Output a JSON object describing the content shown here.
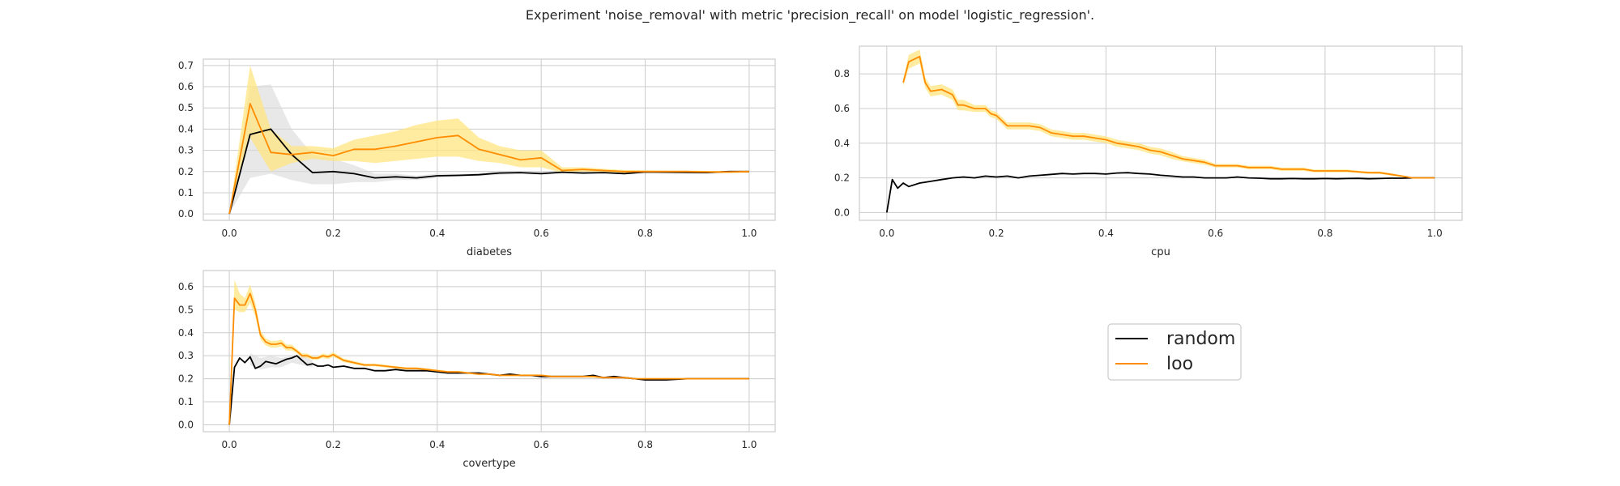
{
  "figure": {
    "title": "Experiment 'noise_removal' with metric 'precision_recall' on model 'logistic_regression'.",
    "legend": {
      "placement": "center",
      "entries": [
        {
          "label": "random",
          "color": "#000000"
        },
        {
          "label": "loo",
          "color": "#ff8c00"
        }
      ]
    },
    "colors": {
      "random": "#000000",
      "random_band": "#d9d9d9",
      "loo": "#ff8c00",
      "loo_band": "#ffe680",
      "grid": "#cccccc"
    }
  },
  "chart_data": [
    {
      "type": "line",
      "xlabel": "diabetes",
      "ylabel": "",
      "xlim": [
        -0.05,
        1.05
      ],
      "ylim": [
        -0.03,
        0.73
      ],
      "xticks": [
        "0.0",
        "0.2",
        "0.4",
        "0.6",
        "0.8",
        "1.0"
      ],
      "yticks": [
        "0.0",
        "0.1",
        "0.2",
        "0.3",
        "0.4",
        "0.5",
        "0.6",
        "0.7"
      ],
      "grid": true,
      "series": [
        {
          "name": "random",
          "x": [
            0.0,
            0.04,
            0.08,
            0.12,
            0.16,
            0.2,
            0.24,
            0.28,
            0.32,
            0.36,
            0.4,
            0.44,
            0.48,
            0.52,
            0.56,
            0.6,
            0.64,
            0.68,
            0.72,
            0.76,
            0.8,
            0.84,
            0.88,
            0.92,
            0.96,
            1.0
          ],
          "y": [
            0.0,
            0.375,
            0.4,
            0.28,
            0.195,
            0.2,
            0.19,
            0.17,
            0.175,
            0.17,
            0.18,
            0.182,
            0.185,
            0.193,
            0.195,
            0.19,
            0.197,
            0.193,
            0.195,
            0.19,
            0.198,
            0.197,
            0.196,
            0.195,
            0.2,
            0.2
          ],
          "lower": [
            0.0,
            0.17,
            0.19,
            0.16,
            0.14,
            0.14,
            0.15,
            0.15,
            0.16,
            0.16,
            0.17,
            0.175,
            0.178,
            0.185,
            0.188,
            0.185,
            0.19,
            0.188,
            0.19,
            0.186,
            0.193,
            0.193,
            0.192,
            0.191,
            0.196,
            0.196
          ],
          "upper": [
            0.0,
            0.6,
            0.61,
            0.4,
            0.28,
            0.26,
            0.23,
            0.19,
            0.19,
            0.18,
            0.19,
            0.19,
            0.192,
            0.2,
            0.202,
            0.196,
            0.204,
            0.198,
            0.2,
            0.195,
            0.203,
            0.201,
            0.2,
            0.199,
            0.204,
            0.204
          ]
        },
        {
          "name": "loo",
          "x": [
            0.0,
            0.04,
            0.08,
            0.12,
            0.16,
            0.2,
            0.24,
            0.28,
            0.32,
            0.36,
            0.4,
            0.44,
            0.48,
            0.52,
            0.56,
            0.6,
            0.64,
            0.68,
            0.72,
            0.76,
            0.8,
            0.84,
            0.88,
            0.92,
            0.96,
            1.0
          ],
          "y": [
            0.0,
            0.52,
            0.29,
            0.28,
            0.29,
            0.275,
            0.305,
            0.305,
            0.32,
            0.34,
            0.36,
            0.37,
            0.305,
            0.28,
            0.255,
            0.265,
            0.205,
            0.21,
            0.205,
            0.2,
            0.2,
            0.2,
            0.2,
            0.198,
            0.198,
            0.2
          ],
          "lower": [
            0.0,
            0.36,
            0.2,
            0.24,
            0.26,
            0.25,
            0.25,
            0.24,
            0.25,
            0.26,
            0.27,
            0.27,
            0.25,
            0.24,
            0.22,
            0.22,
            0.195,
            0.2,
            0.197,
            0.193,
            0.194,
            0.195,
            0.195,
            0.193,
            0.193,
            0.195
          ],
          "upper": [
            0.0,
            0.7,
            0.4,
            0.32,
            0.32,
            0.31,
            0.35,
            0.37,
            0.39,
            0.42,
            0.44,
            0.45,
            0.36,
            0.32,
            0.3,
            0.3,
            0.22,
            0.22,
            0.213,
            0.207,
            0.206,
            0.205,
            0.205,
            0.203,
            0.203,
            0.205
          ]
        }
      ]
    },
    {
      "type": "line",
      "xlabel": "cpu",
      "ylabel": "",
      "xlim": [
        -0.05,
        1.05
      ],
      "ylim": [
        -0.045,
        0.96
      ],
      "xticks": [
        "0.0",
        "0.2",
        "0.4",
        "0.6",
        "0.8",
        "1.0"
      ],
      "yticks": [
        "0.0",
        "0.2",
        "0.4",
        "0.6",
        "0.8"
      ],
      "grid": true,
      "series": [
        {
          "name": "random",
          "x": [
            0.0,
            0.01,
            0.02,
            0.03,
            0.04,
            0.06,
            0.08,
            0.1,
            0.12,
            0.14,
            0.16,
            0.18,
            0.2,
            0.22,
            0.24,
            0.26,
            0.28,
            0.3,
            0.32,
            0.34,
            0.36,
            0.38,
            0.4,
            0.42,
            0.44,
            0.46,
            0.48,
            0.5,
            0.52,
            0.54,
            0.56,
            0.58,
            0.6,
            0.62,
            0.64,
            0.66,
            0.68,
            0.7,
            0.72,
            0.74,
            0.76,
            0.78,
            0.8,
            0.82,
            0.84,
            0.86,
            0.88,
            0.9,
            0.92,
            0.94,
            0.96,
            0.98,
            1.0
          ],
          "y": [
            0.0,
            0.19,
            0.14,
            0.17,
            0.15,
            0.17,
            0.18,
            0.19,
            0.2,
            0.205,
            0.2,
            0.21,
            0.205,
            0.21,
            0.2,
            0.21,
            0.215,
            0.22,
            0.225,
            0.222,
            0.225,
            0.225,
            0.222,
            0.228,
            0.23,
            0.225,
            0.222,
            0.215,
            0.21,
            0.205,
            0.205,
            0.2,
            0.2,
            0.2,
            0.205,
            0.2,
            0.198,
            0.195,
            0.195,
            0.196,
            0.195,
            0.195,
            0.196,
            0.195,
            0.196,
            0.197,
            0.195,
            0.196,
            0.198,
            0.198,
            0.2,
            0.2,
            0.2
          ]
        },
        {
          "name": "loo",
          "x": [
            0.03,
            0.04,
            0.06,
            0.07,
            0.08,
            0.1,
            0.12,
            0.13,
            0.14,
            0.16,
            0.18,
            0.19,
            0.2,
            0.22,
            0.24,
            0.26,
            0.28,
            0.3,
            0.32,
            0.34,
            0.36,
            0.38,
            0.4,
            0.42,
            0.44,
            0.46,
            0.48,
            0.5,
            0.52,
            0.54,
            0.56,
            0.58,
            0.6,
            0.62,
            0.64,
            0.66,
            0.68,
            0.7,
            0.72,
            0.74,
            0.76,
            0.78,
            0.8,
            0.82,
            0.84,
            0.86,
            0.88,
            0.9,
            0.92,
            0.94,
            0.96,
            0.98,
            1.0
          ],
          "y": [
            0.75,
            0.87,
            0.9,
            0.75,
            0.7,
            0.71,
            0.68,
            0.62,
            0.62,
            0.6,
            0.6,
            0.57,
            0.56,
            0.5,
            0.5,
            0.5,
            0.49,
            0.46,
            0.45,
            0.44,
            0.44,
            0.43,
            0.42,
            0.4,
            0.39,
            0.38,
            0.36,
            0.35,
            0.33,
            0.31,
            0.3,
            0.29,
            0.27,
            0.27,
            0.27,
            0.26,
            0.26,
            0.26,
            0.25,
            0.25,
            0.25,
            0.24,
            0.24,
            0.24,
            0.24,
            0.235,
            0.23,
            0.23,
            0.22,
            0.21,
            0.2,
            0.2,
            0.2
          ],
          "lower": [
            0.73,
            0.83,
            0.86,
            0.72,
            0.67,
            0.68,
            0.65,
            0.59,
            0.59,
            0.58,
            0.58,
            0.55,
            0.54,
            0.48,
            0.48,
            0.48,
            0.47,
            0.44,
            0.43,
            0.42,
            0.42,
            0.41,
            0.4,
            0.38,
            0.37,
            0.36,
            0.34,
            0.33,
            0.31,
            0.295,
            0.285,
            0.275,
            0.26,
            0.26,
            0.26,
            0.25,
            0.25,
            0.25,
            0.24,
            0.24,
            0.24,
            0.232,
            0.232,
            0.232,
            0.232,
            0.228,
            0.223,
            0.223,
            0.213,
            0.205,
            0.196,
            0.196,
            0.196
          ],
          "upper": [
            0.77,
            0.91,
            0.94,
            0.78,
            0.73,
            0.74,
            0.71,
            0.65,
            0.65,
            0.62,
            0.62,
            0.59,
            0.58,
            0.52,
            0.52,
            0.52,
            0.51,
            0.48,
            0.47,
            0.46,
            0.46,
            0.45,
            0.44,
            0.42,
            0.41,
            0.4,
            0.38,
            0.37,
            0.35,
            0.325,
            0.315,
            0.305,
            0.28,
            0.28,
            0.28,
            0.27,
            0.27,
            0.27,
            0.26,
            0.26,
            0.26,
            0.248,
            0.248,
            0.248,
            0.248,
            0.242,
            0.237,
            0.237,
            0.227,
            0.215,
            0.204,
            0.204,
            0.204
          ]
        }
      ]
    },
    {
      "type": "line",
      "xlabel": "covertype",
      "ylabel": "",
      "xlim": [
        -0.05,
        1.05
      ],
      "ylim": [
        -0.03,
        0.67
      ],
      "xticks": [
        "0.0",
        "0.2",
        "0.4",
        "0.6",
        "0.8",
        "1.0"
      ],
      "yticks": [
        "0.0",
        "0.1",
        "0.2",
        "0.3",
        "0.4",
        "0.5",
        "0.6"
      ],
      "grid": true,
      "series": [
        {
          "name": "random",
          "x": [
            0.0,
            0.01,
            0.02,
            0.03,
            0.04,
            0.05,
            0.06,
            0.07,
            0.08,
            0.09,
            0.1,
            0.11,
            0.12,
            0.13,
            0.14,
            0.15,
            0.16,
            0.17,
            0.18,
            0.19,
            0.2,
            0.22,
            0.24,
            0.26,
            0.28,
            0.3,
            0.32,
            0.34,
            0.36,
            0.38,
            0.4,
            0.42,
            0.44,
            0.46,
            0.48,
            0.5,
            0.52,
            0.54,
            0.56,
            0.58,
            0.6,
            0.62,
            0.64,
            0.66,
            0.68,
            0.7,
            0.72,
            0.74,
            0.76,
            0.78,
            0.8,
            0.84,
            0.88,
            0.92,
            0.96,
            1.0
          ],
          "y": [
            0.0,
            0.25,
            0.29,
            0.27,
            0.295,
            0.245,
            0.255,
            0.275,
            0.27,
            0.265,
            0.275,
            0.285,
            0.29,
            0.3,
            0.28,
            0.26,
            0.265,
            0.255,
            0.255,
            0.26,
            0.25,
            0.255,
            0.245,
            0.245,
            0.235,
            0.235,
            0.24,
            0.235,
            0.235,
            0.235,
            0.23,
            0.225,
            0.225,
            0.225,
            0.225,
            0.22,
            0.215,
            0.22,
            0.215,
            0.215,
            0.21,
            0.21,
            0.21,
            0.21,
            0.21,
            0.215,
            0.205,
            0.21,
            0.205,
            0.2,
            0.195,
            0.195,
            0.2,
            0.2,
            0.2,
            0.2
          ]
        },
        {
          "name": "loo",
          "x": [
            0.0,
            0.01,
            0.02,
            0.03,
            0.04,
            0.05,
            0.06,
            0.07,
            0.08,
            0.09,
            0.1,
            0.11,
            0.12,
            0.13,
            0.14,
            0.15,
            0.16,
            0.17,
            0.18,
            0.19,
            0.2,
            0.22,
            0.24,
            0.26,
            0.28,
            0.3,
            0.32,
            0.34,
            0.36,
            0.38,
            0.4,
            0.42,
            0.44,
            0.46,
            0.48,
            0.5,
            0.52,
            0.54,
            0.56,
            0.58,
            0.6,
            0.62,
            0.64,
            0.66,
            0.68,
            0.7,
            0.72,
            0.74,
            0.76,
            0.78,
            0.8,
            0.84,
            0.88,
            0.92,
            0.96,
            1.0
          ],
          "y": [
            0.0,
            0.55,
            0.52,
            0.52,
            0.57,
            0.5,
            0.39,
            0.36,
            0.35,
            0.35,
            0.355,
            0.335,
            0.335,
            0.32,
            0.3,
            0.3,
            0.29,
            0.29,
            0.3,
            0.295,
            0.305,
            0.28,
            0.27,
            0.26,
            0.26,
            0.255,
            0.25,
            0.245,
            0.245,
            0.24,
            0.235,
            0.23,
            0.23,
            0.225,
            0.22,
            0.22,
            0.215,
            0.215,
            0.215,
            0.215,
            0.215,
            0.21,
            0.21,
            0.21,
            0.21,
            0.21,
            0.205,
            0.205,
            0.205,
            0.2,
            0.2,
            0.2,
            0.2,
            0.2,
            0.2,
            0.2
          ],
          "lower": [
            0.0,
            0.5,
            0.49,
            0.49,
            0.53,
            0.47,
            0.37,
            0.345,
            0.335,
            0.335,
            0.34,
            0.322,
            0.322,
            0.31,
            0.29,
            0.29,
            0.282,
            0.282,
            0.29,
            0.286,
            0.295,
            0.272,
            0.263,
            0.254,
            0.254,
            0.249,
            0.245,
            0.24,
            0.24,
            0.235,
            0.23,
            0.226,
            0.226,
            0.221,
            0.216,
            0.216,
            0.211,
            0.211,
            0.211,
            0.211,
            0.211,
            0.206,
            0.206,
            0.206,
            0.206,
            0.206,
            0.201,
            0.201,
            0.201,
            0.197,
            0.197,
            0.197,
            0.197,
            0.197,
            0.197,
            0.197
          ],
          "upper": [
            0.0,
            0.63,
            0.57,
            0.55,
            0.61,
            0.53,
            0.41,
            0.375,
            0.365,
            0.365,
            0.37,
            0.348,
            0.348,
            0.33,
            0.31,
            0.31,
            0.298,
            0.298,
            0.31,
            0.304,
            0.315,
            0.288,
            0.277,
            0.266,
            0.266,
            0.261,
            0.255,
            0.25,
            0.25,
            0.245,
            0.24,
            0.234,
            0.234,
            0.229,
            0.224,
            0.224,
            0.219,
            0.219,
            0.219,
            0.219,
            0.219,
            0.214,
            0.214,
            0.214,
            0.214,
            0.214,
            0.209,
            0.209,
            0.209,
            0.203,
            0.203,
            0.203,
            0.203,
            0.203,
            0.203,
            0.203
          ]
        },
        {
          "name": "random_band",
          "x": [
            0.04,
            0.06,
            0.08,
            0.1,
            0.12,
            0.14,
            0.16
          ],
          "lower": [
            0.26,
            0.24,
            0.25,
            0.25,
            0.27,
            0.26,
            0.25
          ],
          "upper": [
            0.31,
            0.29,
            0.3,
            0.29,
            0.3,
            0.3,
            0.28
          ]
        }
      ]
    }
  ]
}
